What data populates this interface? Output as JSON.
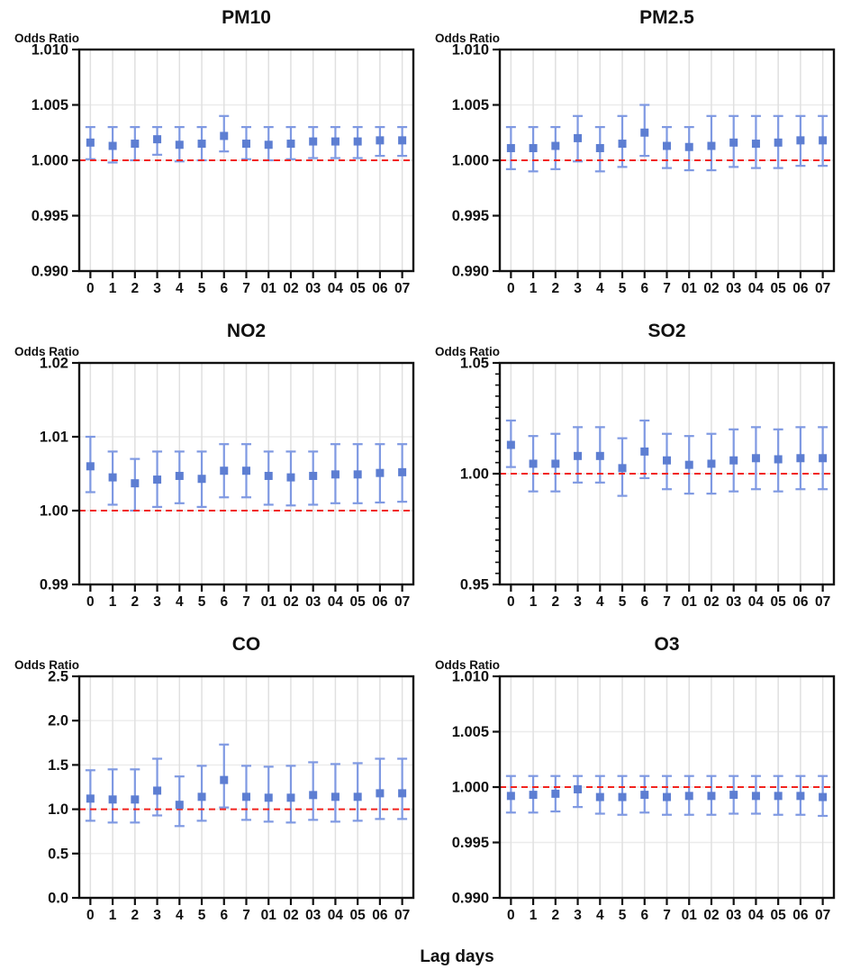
{
  "figure": {
    "xlabel": "Lag days",
    "ylabel": "Odds Ratio"
  },
  "colors": {
    "marker": "#5d7ed2",
    "error_bar": "#7f99e2",
    "ref_line": "#f2241f",
    "grid_vertical": "#e0e0e0",
    "grid_horizontal": "#ebebeb",
    "axis": "#111111",
    "text": "#111111"
  },
  "chart_data": {
    "type": "errorbar",
    "xlabel": "Lag days",
    "categories": [
      "0",
      "1",
      "2",
      "3",
      "4",
      "5",
      "6",
      "7",
      "01",
      "02",
      "03",
      "04",
      "05",
      "06",
      "07"
    ],
    "legend": "none",
    "grid": "on",
    "panels": [
      {
        "title": "PM10",
        "ylabel": "Odds Ratio",
        "ylim": [
          0.99,
          1.01
        ],
        "yticks": [
          0.99,
          0.995,
          1.0,
          1.005,
          1.01
        ],
        "decimals": 3,
        "minor_step": null,
        "ref_line": 1.0,
        "points": [
          [
            1.0016,
            1.0001,
            1.003
          ],
          [
            1.0013,
            0.9998,
            1.003
          ],
          [
            1.0015,
            1.0,
            1.003
          ],
          [
            1.0019,
            1.0005,
            1.003
          ],
          [
            1.0014,
            0.9999,
            1.003
          ],
          [
            1.0015,
            1.0,
            1.003
          ],
          [
            1.0022,
            1.0008,
            1.004
          ],
          [
            1.0015,
            1.0001,
            1.003
          ],
          [
            1.0014,
            1.0,
            1.003
          ],
          [
            1.0015,
            1.0001,
            1.003
          ],
          [
            1.0017,
            1.0002,
            1.003
          ],
          [
            1.0017,
            1.0002,
            1.003
          ],
          [
            1.0017,
            1.0002,
            1.003
          ],
          [
            1.0018,
            1.0004,
            1.003
          ],
          [
            1.0018,
            1.0004,
            1.003
          ]
        ]
      },
      {
        "title": "PM2.5",
        "ylabel": "Odds Ratio",
        "ylim": [
          0.99,
          1.01
        ],
        "yticks": [
          0.99,
          0.995,
          1.0,
          1.005,
          1.01
        ],
        "decimals": 3,
        "minor_step": null,
        "ref_line": 1.0,
        "points": [
          [
            1.0011,
            0.9992,
            1.003
          ],
          [
            1.0011,
            0.999,
            1.003
          ],
          [
            1.0013,
            0.9992,
            1.003
          ],
          [
            1.002,
            0.9999,
            1.004
          ],
          [
            1.0011,
            0.999,
            1.003
          ],
          [
            1.0015,
            0.9994,
            1.004
          ],
          [
            1.0025,
            1.0004,
            1.005
          ],
          [
            1.0013,
            0.9993,
            1.003
          ],
          [
            1.0012,
            0.9991,
            1.003
          ],
          [
            1.0013,
            0.9991,
            1.004
          ],
          [
            1.0016,
            0.9994,
            1.004
          ],
          [
            1.0015,
            0.9993,
            1.004
          ],
          [
            1.0016,
            0.9993,
            1.004
          ],
          [
            1.0018,
            0.9995,
            1.004
          ],
          [
            1.0018,
            0.9995,
            1.004
          ]
        ]
      },
      {
        "title": "NO2",
        "ylabel": "Odds Ratio",
        "ylim": [
          0.99,
          1.02
        ],
        "yticks": [
          0.99,
          1.0,
          1.01,
          1.02
        ],
        "decimals": 2,
        "minor_step": null,
        "ref_line": 1.0,
        "points": [
          [
            1.006,
            1.0025,
            1.01
          ],
          [
            1.0045,
            1.0008,
            1.008
          ],
          [
            1.0037,
            1.0,
            1.007
          ],
          [
            1.0042,
            1.0005,
            1.008
          ],
          [
            1.0047,
            1.001,
            1.008
          ],
          [
            1.0043,
            1.0005,
            1.008
          ],
          [
            1.0054,
            1.0018,
            1.009
          ],
          [
            1.0054,
            1.0018,
            1.009
          ],
          [
            1.0047,
            1.0008,
            1.008
          ],
          [
            1.0045,
            1.0007,
            1.008
          ],
          [
            1.0047,
            1.0008,
            1.008
          ],
          [
            1.0049,
            1.001,
            1.009
          ],
          [
            1.0049,
            1.001,
            1.009
          ],
          [
            1.0051,
            1.0011,
            1.009
          ],
          [
            1.0052,
            1.0012,
            1.009
          ]
        ]
      },
      {
        "title": "SO2",
        "ylabel": "Odds Ratio",
        "ylim": [
          0.95,
          1.05
        ],
        "yticks": [
          0.95,
          1.0,
          1.05
        ],
        "decimals": 2,
        "minor_step": 0.005,
        "ref_line": 1.0,
        "points": [
          [
            1.013,
            1.003,
            1.024
          ],
          [
            1.0045,
            0.992,
            1.017
          ],
          [
            1.0045,
            0.992,
            1.018
          ],
          [
            1.008,
            0.996,
            1.021
          ],
          [
            1.008,
            0.996,
            1.021
          ],
          [
            1.0025,
            0.99,
            1.016
          ],
          [
            1.01,
            0.998,
            1.024
          ],
          [
            1.006,
            0.993,
            1.018
          ],
          [
            1.004,
            0.991,
            1.017
          ],
          [
            1.0045,
            0.991,
            1.018
          ],
          [
            1.006,
            0.992,
            1.02
          ],
          [
            1.007,
            0.993,
            1.021
          ],
          [
            1.0065,
            0.992,
            1.02
          ],
          [
            1.007,
            0.993,
            1.021
          ],
          [
            1.007,
            0.993,
            1.021
          ]
        ]
      },
      {
        "title": "CO",
        "ylabel": "Odds Ratio",
        "ylim": [
          0.0,
          2.5
        ],
        "yticks": [
          0.0,
          0.5,
          1.0,
          1.5,
          2.0,
          2.5
        ],
        "decimals": 1,
        "minor_step": null,
        "ref_line": 1.0,
        "points": [
          [
            1.12,
            0.87,
            1.44
          ],
          [
            1.11,
            0.85,
            1.45
          ],
          [
            1.11,
            0.85,
            1.45
          ],
          [
            1.21,
            0.93,
            1.57
          ],
          [
            1.05,
            0.81,
            1.37
          ],
          [
            1.14,
            0.87,
            1.49
          ],
          [
            1.33,
            1.02,
            1.73
          ],
          [
            1.14,
            0.88,
            1.49
          ],
          [
            1.13,
            0.86,
            1.48
          ],
          [
            1.13,
            0.85,
            1.49
          ],
          [
            1.16,
            0.88,
            1.53
          ],
          [
            1.14,
            0.86,
            1.51
          ],
          [
            1.14,
            0.87,
            1.52
          ],
          [
            1.18,
            0.89,
            1.57
          ],
          [
            1.18,
            0.89,
            1.57
          ]
        ]
      },
      {
        "title": "O3",
        "ylabel": "Odds Ratio",
        "ylim": [
          0.99,
          1.01
        ],
        "yticks": [
          0.99,
          0.995,
          1.0,
          1.005,
          1.01
        ],
        "decimals": 3,
        "minor_step": null,
        "ref_line": 1.0,
        "points": [
          [
            0.9992,
            0.9977,
            1.001
          ],
          [
            0.9993,
            0.9977,
            1.001
          ],
          [
            0.9994,
            0.9978,
            1.001
          ],
          [
            0.9998,
            0.9982,
            1.001
          ],
          [
            0.9991,
            0.9976,
            1.001
          ],
          [
            0.9991,
            0.9975,
            1.001
          ],
          [
            0.9993,
            0.9977,
            1.001
          ],
          [
            0.9991,
            0.9975,
            1.001
          ],
          [
            0.9992,
            0.9975,
            1.001
          ],
          [
            0.9992,
            0.9975,
            1.001
          ],
          [
            0.9993,
            0.9976,
            1.001
          ],
          [
            0.9992,
            0.9976,
            1.001
          ],
          [
            0.9992,
            0.9975,
            1.001
          ],
          [
            0.9992,
            0.9975,
            1.001
          ],
          [
            0.9991,
            0.9974,
            1.001
          ]
        ]
      }
    ]
  }
}
